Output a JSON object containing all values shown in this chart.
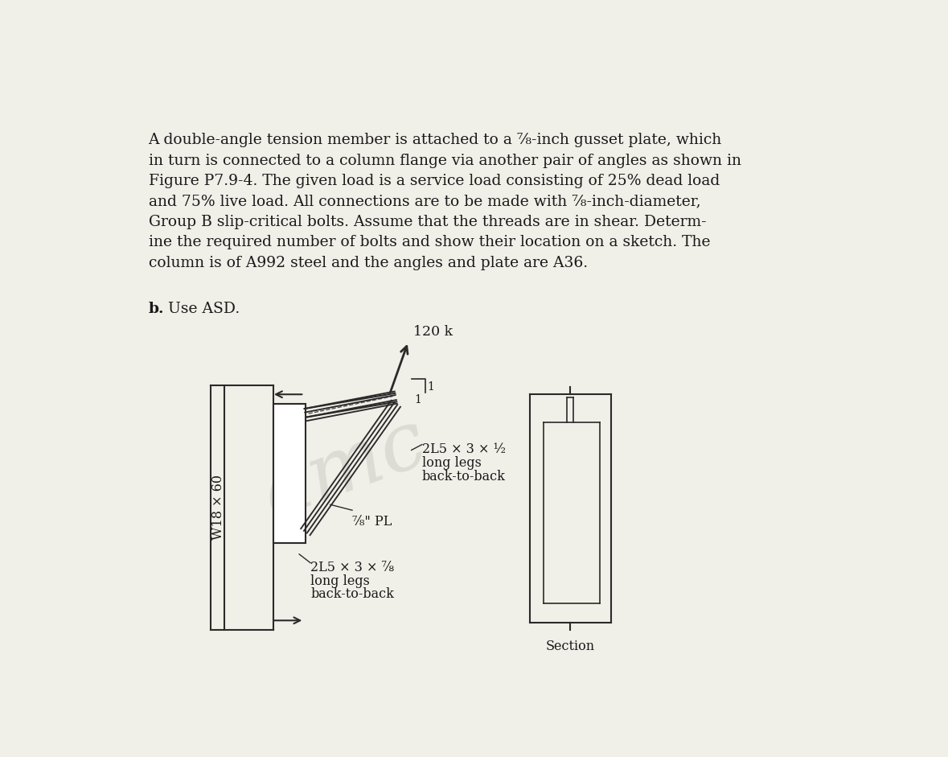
{
  "bg_color": "#f0efe8",
  "text_color": "#1a1a1a",
  "line_color": "#2a2a2a",
  "paragraph_lines": [
    "A double-angle tension member is attached to a ⁷⁄₈-inch gusset plate, which",
    "in turn is connected to a column flange via another pair of angles as shown in",
    "Figure P7.9-4. The given load is a service load consisting of 25% dead load",
    "and 75% live load. All connections are to be made with ⁷⁄₈-inch-diameter,",
    "Group B slip-critical bolts. Assume that the threads are in shear. Determ-",
    "ine the required number of bolts and show their location on a sketch. The",
    "column is of A992 steel and the angles and plate are A36."
  ],
  "bold_label": "b.",
  "use_label": " Use ASD.",
  "watermark": "amc",
  "label_120k": "120 k",
  "label_1_top": "1",
  "label_1_bot": "1",
  "label_angles_top_L1": "2L5 × 3 × ½",
  "label_angles_top_L2": "long legs",
  "label_angles_top_L3": "back-to-back",
  "label_pl": "⁷⁄₈\" PL",
  "label_angles_bot_L1": "2L5 × 3 × ⅞",
  "label_angles_bot_L2": "long legs",
  "label_angles_bot_L3": "back-to-back",
  "label_w18": "W18 × 60",
  "label_section": "Section",
  "fontsize_body": 13.5,
  "fontsize_label": 11.5,
  "fontsize_small": 10.0
}
